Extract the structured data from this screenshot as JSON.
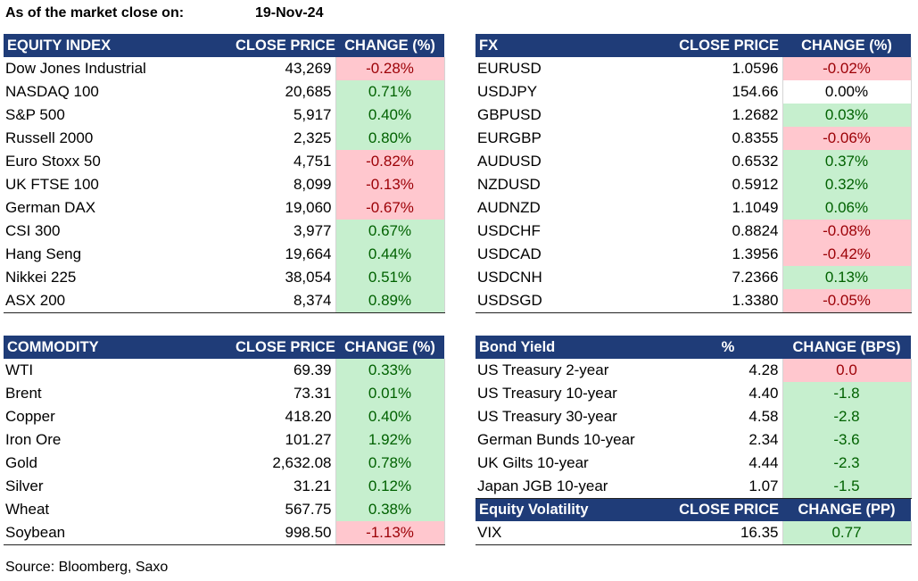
{
  "header": {
    "label": "As of the market close on:",
    "date": "19-Nov-24"
  },
  "equity": {
    "headers": [
      "EQUITY INDEX",
      "CLOSE PRICE",
      "CHANGE (%)"
    ],
    "rows": [
      {
        "name": "Dow Jones Industrial",
        "close": "43,269",
        "change": "-0.28%",
        "dir": "neg"
      },
      {
        "name": "NASDAQ 100",
        "close": "20,685",
        "change": "0.71%",
        "dir": "pos"
      },
      {
        "name": "S&P 500",
        "close": "5,917",
        "change": "0.40%",
        "dir": "pos"
      },
      {
        "name": "Russell 2000",
        "close": "2,325",
        "change": "0.80%",
        "dir": "pos"
      },
      {
        "name": "Euro Stoxx 50",
        "close": "4,751",
        "change": "-0.82%",
        "dir": "neg"
      },
      {
        "name": "UK FTSE 100",
        "close": "8,099",
        "change": "-0.13%",
        "dir": "neg"
      },
      {
        "name": "German DAX",
        "close": "19,060",
        "change": "-0.67%",
        "dir": "neg"
      },
      {
        "name": "CSI 300",
        "close": "3,977",
        "change": "0.67%",
        "dir": "pos"
      },
      {
        "name": "Hang Seng",
        "close": "19,664",
        "change": "0.44%",
        "dir": "pos"
      },
      {
        "name": "Nikkei 225",
        "close": "38,054",
        "change": "0.51%",
        "dir": "pos"
      },
      {
        "name": "ASX 200",
        "close": "8,374",
        "change": "0.89%",
        "dir": "pos"
      }
    ]
  },
  "fx": {
    "headers": [
      "FX",
      "CLOSE PRICE",
      "CHANGE (%)"
    ],
    "rows": [
      {
        "name": "EURUSD",
        "close": "1.0596",
        "change": "-0.02%",
        "dir": "neg"
      },
      {
        "name": "USDJPY",
        "close": "154.66",
        "change": "0.00%",
        "dir": "neu"
      },
      {
        "name": "GBPUSD",
        "close": "1.2682",
        "change": "0.03%",
        "dir": "pos"
      },
      {
        "name": "EURGBP",
        "close": "0.8355",
        "change": "-0.06%",
        "dir": "neg"
      },
      {
        "name": "AUDUSD",
        "close": "0.6532",
        "change": "0.37%",
        "dir": "pos"
      },
      {
        "name": "NZDUSD",
        "close": "0.5912",
        "change": "0.32%",
        "dir": "pos"
      },
      {
        "name": "AUDNZD",
        "close": "1.1049",
        "change": "0.06%",
        "dir": "pos"
      },
      {
        "name": "USDCHF",
        "close": "0.8824",
        "change": "-0.08%",
        "dir": "neg"
      },
      {
        "name": "USDCAD",
        "close": "1.3956",
        "change": "-0.42%",
        "dir": "neg"
      },
      {
        "name": "USDCNH",
        "close": "7.2366",
        "change": "0.13%",
        "dir": "pos"
      },
      {
        "name": "USDSGD",
        "close": "1.3380",
        "change": "-0.05%",
        "dir": "neg"
      }
    ]
  },
  "commodity": {
    "headers": [
      "COMMODITY",
      "CLOSE PRICE",
      "CHANGE (%)"
    ],
    "rows": [
      {
        "name": "WTI",
        "close": "69.39",
        "change": "0.33%",
        "dir": "pos"
      },
      {
        "name": "Brent",
        "close": "73.31",
        "change": "0.01%",
        "dir": "pos"
      },
      {
        "name": "Copper",
        "close": "418.20",
        "change": "0.40%",
        "dir": "pos"
      },
      {
        "name": "Iron Ore",
        "close": "101.27",
        "change": "1.92%",
        "dir": "pos"
      },
      {
        "name": "Gold",
        "close": "2,632.08",
        "change": "0.78%",
        "dir": "pos"
      },
      {
        "name": "Silver",
        "close": "31.21",
        "change": "0.12%",
        "dir": "pos"
      },
      {
        "name": "Wheat",
        "close": "567.75",
        "change": "0.38%",
        "dir": "pos"
      },
      {
        "name": "Soybean",
        "close": "998.50",
        "change": "-1.13%",
        "dir": "neg"
      }
    ]
  },
  "bond": {
    "headers": [
      "Bond Yield",
      "%",
      "CHANGE (BPS)"
    ],
    "rows": [
      {
        "name": "US Treasury 2-year",
        "close": "4.28",
        "change": "0.0",
        "dir": "neg"
      },
      {
        "name": "US Treasury 10-year",
        "close": "4.40",
        "change": "-1.8",
        "dir": "pos"
      },
      {
        "name": "US Treasury 30-year",
        "close": "4.58",
        "change": "-2.8",
        "dir": "pos"
      },
      {
        "name": "German Bunds 10-year",
        "close": "2.34",
        "change": "-3.6",
        "dir": "pos"
      },
      {
        "name": "UK Gilts 10-year",
        "close": "4.44",
        "change": "-2.3",
        "dir": "pos"
      },
      {
        "name": "Japan JGB 10-year",
        "close": "1.07",
        "change": "-1.5",
        "dir": "pos"
      }
    ],
    "vol_headers": [
      "Equity Volatility",
      "CLOSE PRICE",
      "CHANGE (PP)"
    ],
    "vol_rows": [
      {
        "name": "VIX",
        "close": "16.35",
        "change": "0.77",
        "dir": "pos"
      }
    ]
  },
  "footer": {
    "source": "Source: Bloomberg, Saxo"
  },
  "colors": {
    "header_bg": "#1f3c78",
    "pos_bg": "#c6efce",
    "pos_text": "#006100",
    "neg_bg": "#ffc7ce",
    "neg_text": "#9c0006"
  }
}
